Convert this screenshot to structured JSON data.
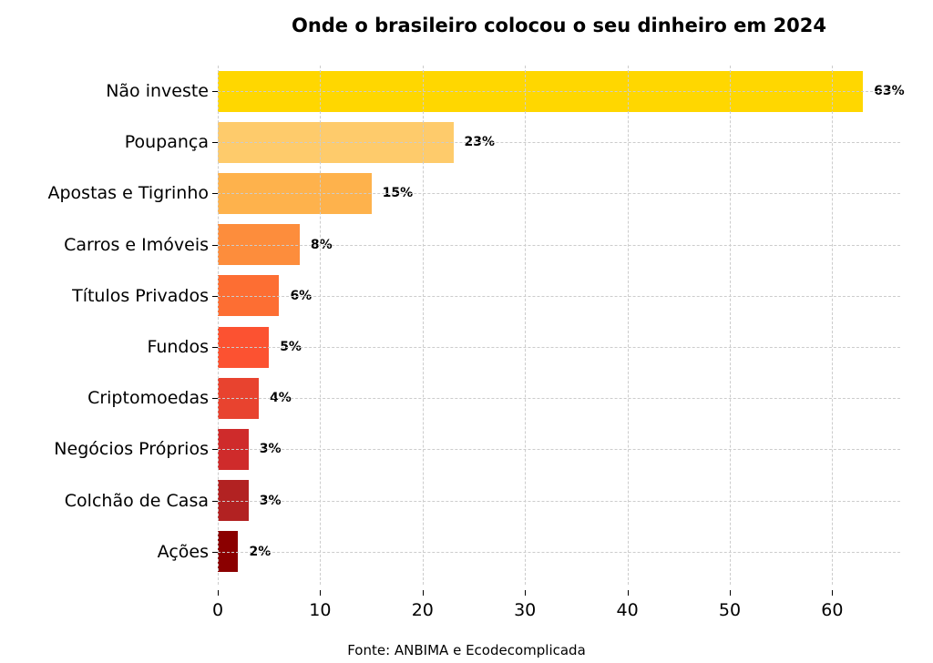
{
  "chart_data": {
    "type": "bar",
    "orientation": "horizontal",
    "title": "Onde o brasileiro colocou o seu dinheiro em 2024",
    "xlabel": "",
    "ylabel": "",
    "xlim": [
      0,
      66.6
    ],
    "xticks": [
      0,
      10,
      20,
      30,
      40,
      50,
      60
    ],
    "grid": true,
    "legend": null,
    "categories": [
      "Não investe",
      "Poupança",
      "Apostas e Tigrinho",
      "Carros e Imóveis",
      "Títulos Privados",
      "Fundos",
      "Criptomoedas",
      "Negócios Próprios",
      "Colchão de Casa",
      "Ações"
    ],
    "values": [
      63,
      23,
      15,
      8,
      6,
      5,
      4,
      3,
      3,
      2
    ],
    "value_labels": [
      "63%",
      "23%",
      "15%",
      "8%",
      "6%",
      "5%",
      "4%",
      "3%",
      "3%",
      "2%"
    ],
    "colors": [
      "#ffd700",
      "#fecb6b",
      "#feb24c",
      "#fd8d3c",
      "#fd6e33",
      "#fc5231",
      "#e8432f",
      "#cf2b2b",
      "#b22222",
      "#8b0000"
    ],
    "annotation": "Fonte: ANBIMA e Ecodecomplicada"
  },
  "title": "Onde o brasileiro colocou o seu dinheiro em 2024",
  "source": "Fonte: ANBIMA e Ecodecomplicada",
  "xtick_labels": [
    "0",
    "10",
    "20",
    "30",
    "40",
    "50",
    "60"
  ]
}
